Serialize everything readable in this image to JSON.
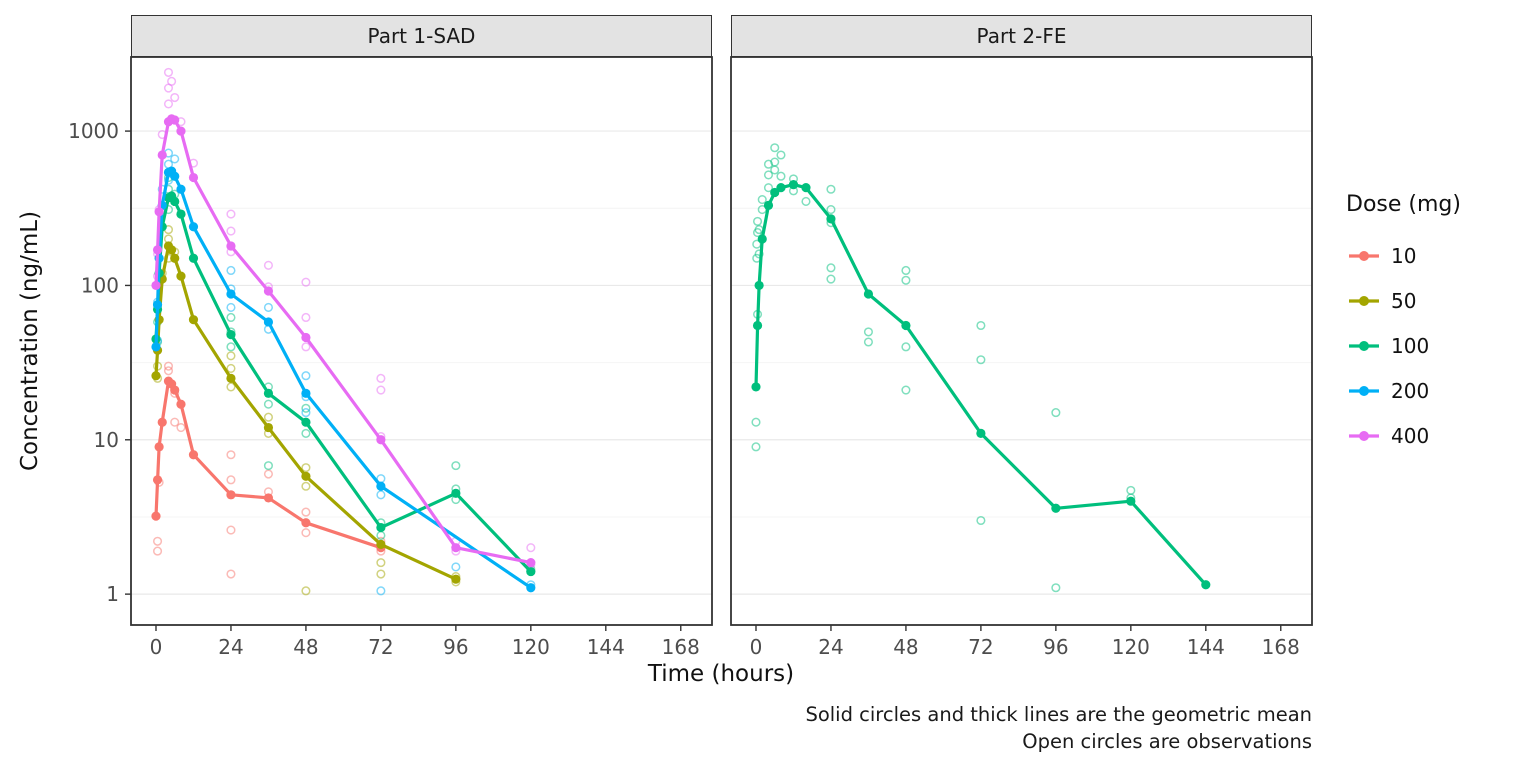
{
  "chart_data": {
    "type": "line",
    "title": "",
    "xlabel": "Time (hours)",
    "ylabel": "Concentration (ng/mL)",
    "y_scale": "log10",
    "grid": "horizontal-major-and-minor",
    "x_ticks": [
      0,
      24,
      48,
      72,
      96,
      120,
      144,
      168
    ],
    "y_ticks": [
      1,
      10,
      100,
      1000
    ],
    "x_range": [
      -8,
      178
    ],
    "y_log_range": [
      -0.2,
      3.48
    ],
    "legend_title": "Dose (mg)",
    "legend_entries": [
      "10",
      "50",
      "100",
      "200",
      "400"
    ],
    "colors": {
      "10": "#F8766D",
      "50": "#A3A500",
      "100": "#00BF7D",
      "200": "#00B0F6",
      "400": "#E76BF3"
    },
    "caption": [
      "Solid circles and thick lines are the geometric mean",
      "Open circles are observations"
    ],
    "panels": [
      {
        "title": "Part 1-SAD",
        "series": [
          {
            "dose": "10",
            "mean": [
              [
                0,
                3.2
              ],
              [
                0.5,
                5.5
              ],
              [
                1,
                9
              ],
              [
                2,
                13
              ],
              [
                4,
                24
              ],
              [
                5,
                23
              ],
              [
                6,
                21
              ],
              [
                8,
                17
              ],
              [
                12,
                8
              ],
              [
                24,
                4.4
              ],
              [
                36,
                4.2
              ],
              [
                48,
                2.9
              ],
              [
                72,
                2.0
              ]
            ]
          },
          {
            "dose": "50",
            "mean": [
              [
                0,
                26
              ],
              [
                0.5,
                38
              ],
              [
                1,
                60
              ],
              [
                2,
                110
              ],
              [
                4,
                180
              ],
              [
                5,
                170
              ],
              [
                6,
                150
              ],
              [
                8,
                115
              ],
              [
                12,
                60
              ],
              [
                24,
                25
              ],
              [
                36,
                12
              ],
              [
                48,
                5.8
              ],
              [
                72,
                2.1
              ],
              [
                96,
                1.25
              ]
            ]
          },
          {
            "dose": "100",
            "mean": [
              [
                0,
                45
              ],
              [
                0.5,
                70
              ],
              [
                1,
                120
              ],
              [
                2,
                240
              ],
              [
                4,
                370
              ],
              [
                5,
                380
              ],
              [
                6,
                350
              ],
              [
                8,
                290
              ],
              [
                12,
                150
              ],
              [
                24,
                48
              ],
              [
                36,
                20
              ],
              [
                48,
                13
              ],
              [
                72,
                2.7
              ],
              [
                96,
                4.5
              ],
              [
                120,
                1.4
              ]
            ]
          },
          {
            "dose": "200",
            "mean": [
              [
                0,
                40
              ],
              [
                0.5,
                75
              ],
              [
                1,
                150
              ],
              [
                2,
                330
              ],
              [
                4,
                540
              ],
              [
                5,
                550
              ],
              [
                6,
                510
              ],
              [
                8,
                420
              ],
              [
                12,
                240
              ],
              [
                24,
                88
              ],
              [
                36,
                58
              ],
              [
                48,
                20
              ],
              [
                72,
                5
              ],
              [
                120,
                1.1
              ]
            ]
          },
          {
            "dose": "400",
            "mean": [
              [
                0,
                100
              ],
              [
                0.5,
                170
              ],
              [
                1,
                300
              ],
              [
                2,
                700
              ],
              [
                4,
                1150
              ],
              [
                5,
                1200
              ],
              [
                6,
                1180
              ],
              [
                8,
                1000
              ],
              [
                12,
                500
              ],
              [
                24,
                180
              ],
              [
                36,
                92
              ],
              [
                48,
                46
              ],
              [
                72,
                10
              ],
              [
                96,
                2.0
              ],
              [
                120,
                1.6
              ]
            ]
          }
        ],
        "observations": {
          "10": [
            [
              0.5,
              1.9
            ],
            [
              0.5,
              2.2
            ],
            [
              1,
              5.3
            ],
            [
              4,
              30
            ],
            [
              4,
              28
            ],
            [
              6,
              20
            ],
            [
              6,
              13
            ],
            [
              8,
              12
            ],
            [
              24,
              8
            ],
            [
              24,
              5.5
            ],
            [
              24,
              2.6
            ],
            [
              24,
              1.35
            ],
            [
              36,
              6
            ],
            [
              36,
              4.6
            ],
            [
              48,
              3.4
            ],
            [
              48,
              2.5
            ],
            [
              72,
              2.2
            ],
            [
              72,
              1.9
            ]
          ],
          "50": [
            [
              0.5,
              30
            ],
            [
              0.5,
              25
            ],
            [
              2,
              120
            ],
            [
              4,
              230
            ],
            [
              4,
              200
            ],
            [
              4,
              150
            ],
            [
              6,
              165
            ],
            [
              24,
              35
            ],
            [
              24,
              29
            ],
            [
              24,
              22
            ],
            [
              36,
              14
            ],
            [
              36,
              11
            ],
            [
              48,
              6.6
            ],
            [
              48,
              5.0
            ],
            [
              48,
              1.05
            ],
            [
              72,
              1.6
            ],
            [
              72,
              1.35
            ],
            [
              96,
              1.3
            ],
            [
              96,
              1.2
            ]
          ],
          "100": [
            [
              0.5,
              75
            ],
            [
              0.5,
              58
            ],
            [
              0.5,
              43
            ],
            [
              4,
              500
            ],
            [
              4,
              420
            ],
            [
              4,
              310
            ],
            [
              6,
              390
            ],
            [
              24,
              62
            ],
            [
              24,
              50
            ],
            [
              24,
              40
            ],
            [
              36,
              22
            ],
            [
              36,
              17
            ],
            [
              36,
              6.8
            ],
            [
              48,
              16
            ],
            [
              48,
              11
            ],
            [
              72,
              2.9
            ],
            [
              72,
              2.4
            ],
            [
              96,
              6.8
            ],
            [
              96,
              4.8
            ],
            [
              96,
              4.1
            ],
            [
              120,
              1.45
            ]
          ],
          "200": [
            [
              0.5,
              78
            ],
            [
              0.5,
              44
            ],
            [
              2,
              420
            ],
            [
              4,
              720
            ],
            [
              4,
              610
            ],
            [
              4,
              480
            ],
            [
              6,
              660
            ],
            [
              24,
              125
            ],
            [
              24,
              95
            ],
            [
              24,
              72
            ],
            [
              36,
              72
            ],
            [
              36,
              52
            ],
            [
              48,
              26
            ],
            [
              48,
              19
            ],
            [
              48,
              15
            ],
            [
              72,
              5.6
            ],
            [
              72,
              4.4
            ],
            [
              72,
              1.05
            ],
            [
              96,
              1.5
            ],
            [
              120,
              1.15
            ]
          ],
          "400": [
            [
              0.5,
              160
            ],
            [
              0.5,
              115
            ],
            [
              1,
              310
            ],
            [
              2,
              950
            ],
            [
              4,
              2400
            ],
            [
              4,
              1900
            ],
            [
              4,
              1500
            ],
            [
              5,
              2100
            ],
            [
              6,
              1650
            ],
            [
              8,
              1150
            ],
            [
              12,
              620
            ],
            [
              24,
              290
            ],
            [
              24,
              225
            ],
            [
              24,
              165
            ],
            [
              36,
              135
            ],
            [
              36,
              98
            ],
            [
              48,
              105
            ],
            [
              48,
              62
            ],
            [
              48,
              40
            ],
            [
              72,
              25
            ],
            [
              72,
              21
            ],
            [
              72,
              10.5
            ],
            [
              96,
              2.2
            ],
            [
              96,
              1.9
            ],
            [
              120,
              2.0
            ],
            [
              120,
              1.55
            ],
            [
              120,
              1.4
            ]
          ]
        }
      },
      {
        "title": "Part 2-FE",
        "series": [
          {
            "dose": "100",
            "mean": [
              [
                0,
                22
              ],
              [
                0.5,
                55
              ],
              [
                1,
                100
              ],
              [
                2,
                200
              ],
              [
                4,
                330
              ],
              [
                6,
                400
              ],
              [
                8,
                430
              ],
              [
                12,
                450
              ],
              [
                16,
                430
              ],
              [
                24,
                270
              ],
              [
                36,
                88
              ],
              [
                48,
                55
              ],
              [
                72,
                11
              ],
              [
                96,
                3.6
              ],
              [
                120,
                4.0
              ],
              [
                144,
                1.15
              ]
            ]
          }
        ],
        "observations": {
          "100": [
            [
              0,
              9
            ],
            [
              0,
              13
            ],
            [
              0.25,
              150
            ],
            [
              0.25,
              185
            ],
            [
              0.5,
              220
            ],
            [
              0.5,
              260
            ],
            [
              0.5,
              65
            ],
            [
              1,
              230
            ],
            [
              1,
              160
            ],
            [
              2,
              310
            ],
            [
              2,
              360
            ],
            [
              4,
              430
            ],
            [
              4,
              520
            ],
            [
              4,
              610
            ],
            [
              6,
              560
            ],
            [
              6,
              780
            ],
            [
              6,
              630
            ],
            [
              8,
              700
            ],
            [
              8,
              510
            ],
            [
              12,
              490
            ],
            [
              12,
              410
            ],
            [
              16,
              350
            ],
            [
              24,
              420
            ],
            [
              24,
              310
            ],
            [
              24,
              255
            ],
            [
              24,
              130
            ],
            [
              24,
              110
            ],
            [
              36,
              50
            ],
            [
              36,
              43
            ],
            [
              48,
              125
            ],
            [
              48,
              108
            ],
            [
              48,
              40
            ],
            [
              48,
              21
            ],
            [
              72,
              55
            ],
            [
              72,
              33
            ],
            [
              72,
              3.0
            ],
            [
              96,
              15
            ],
            [
              96,
              1.1
            ],
            [
              120,
              4.7
            ],
            [
              120,
              4.2
            ]
          ]
        }
      }
    ]
  }
}
